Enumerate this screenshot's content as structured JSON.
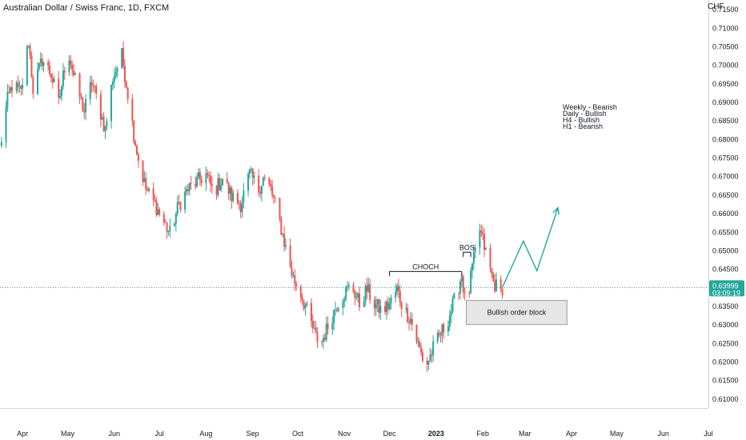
{
  "header": {
    "title": "Australian Dollar / Swiss Franc, 1D, FXCM",
    "currency": "CHF"
  },
  "price_tag": {
    "price": "0.63999",
    "countdown": "03:09:19"
  },
  "bias_notes": [
    "Weekly - Bearish",
    "Daily - Bullish",
    "H4 - Bullish",
    "H1 - Bearish"
  ],
  "annotations": {
    "choch": "CHOCH",
    "bos": "BOS",
    "order_block": "Bullish order block"
  },
  "colors": {
    "up": "#26a69a",
    "down": "#ef5350",
    "projection": "#26a69a",
    "price_line": "#26a69a",
    "order_block_fill": "#e6e6e6"
  },
  "chart_data": {
    "type": "candlestick",
    "title": "Australian Dollar / Swiss Franc, 1D, FXCM",
    "ylabel": "CHF",
    "ylim": [
      0.6075,
      0.7175
    ],
    "y_ticks": [
      "0.71500",
      "0.71000",
      "0.70500",
      "0.70000",
      "0.69500",
      "0.69000",
      "0.68500",
      "0.68000",
      "0.67500",
      "0.67000",
      "0.66500",
      "0.66000",
      "0.65500",
      "0.65000",
      "0.64500",
      "0.64000",
      "0.63500",
      "0.63000",
      "0.62500",
      "0.62000",
      "0.61500",
      "0.61000"
    ],
    "x_ticks": [
      "Apr",
      "May",
      "Jun",
      "Jul",
      "Aug",
      "Sep",
      "Oct",
      "Nov",
      "Dec",
      "2023",
      "Feb",
      "Mar",
      "Apr",
      "May",
      "Jun",
      "Jul"
    ],
    "x_range": [
      "2022-03-17",
      "2023-07-01"
    ],
    "anchors": [
      [
        "2022-03-17",
        0.6775
      ],
      [
        "2022-03-22",
        0.6905
      ],
      [
        "2022-03-25",
        0.6945
      ],
      [
        "2022-03-31",
        0.6925
      ],
      [
        "2022-04-05",
        0.7065
      ],
      [
        "2022-04-08",
        0.6935
      ],
      [
        "2022-04-14",
        0.7015
      ],
      [
        "2022-04-20",
        0.6975
      ],
      [
        "2022-04-25",
        0.6895
      ],
      [
        "2022-05-01",
        0.7045
      ],
      [
        "2022-05-06",
        0.6955
      ],
      [
        "2022-05-12",
        0.6875
      ],
      [
        "2022-05-17",
        0.6955
      ],
      [
        "2022-05-22",
        0.6885
      ],
      [
        "2022-05-26",
        0.6825
      ],
      [
        "2022-05-31",
        0.6965
      ],
      [
        "2022-06-06",
        0.7025
      ],
      [
        "2022-06-10",
        0.6925
      ],
      [
        "2022-06-14",
        0.6815
      ],
      [
        "2022-06-17",
        0.6745
      ],
      [
        "2022-06-22",
        0.6665
      ],
      [
        "2022-06-28",
        0.6625
      ],
      [
        "2022-07-04",
        0.6575
      ],
      [
        "2022-07-08",
        0.6545
      ],
      [
        "2022-07-14",
        0.6625
      ],
      [
        "2022-07-20",
        0.6665
      ],
      [
        "2022-07-26",
        0.6685
      ],
      [
        "2022-08-01",
        0.6705
      ],
      [
        "2022-08-06",
        0.6655
      ],
      [
        "2022-08-12",
        0.6695
      ],
      [
        "2022-08-18",
        0.6645
      ],
      [
        "2022-08-24",
        0.6625
      ],
      [
        "2022-08-30",
        0.6705
      ],
      [
        "2022-09-05",
        0.6665
      ],
      [
        "2022-09-08",
        0.6695
      ],
      [
        "2022-09-13",
        0.6665
      ],
      [
        "2022-09-18",
        0.6595
      ],
      [
        "2022-09-23",
        0.6505
      ],
      [
        "2022-09-28",
        0.6425
      ],
      [
        "2022-10-03",
        0.6385
      ],
      [
        "2022-10-08",
        0.6325
      ],
      [
        "2022-10-13",
        0.6265
      ],
      [
        "2022-10-17",
        0.6255
      ],
      [
        "2022-10-22",
        0.6305
      ],
      [
        "2022-10-27",
        0.6355
      ],
      [
        "2022-11-01",
        0.6385
      ],
      [
        "2022-11-06",
        0.6405
      ],
      [
        "2022-11-11",
        0.6355
      ],
      [
        "2022-11-16",
        0.6395
      ],
      [
        "2022-11-21",
        0.6355
      ],
      [
        "2022-11-26",
        0.6335
      ],
      [
        "2022-12-01",
        0.6355
      ],
      [
        "2022-12-06",
        0.6395
      ],
      [
        "2022-12-10",
        0.6345
      ],
      [
        "2022-12-15",
        0.6315
      ],
      [
        "2022-12-20",
        0.6245
      ],
      [
        "2022-12-25",
        0.6185
      ],
      [
        "2022-12-30",
        0.6235
      ],
      [
        "2023-01-04",
        0.6275
      ],
      [
        "2023-01-09",
        0.6315
      ],
      [
        "2023-01-14",
        0.6375
      ],
      [
        "2023-01-18",
        0.6435
      ],
      [
        "2023-01-21",
        0.6335
      ],
      [
        "2023-01-25",
        0.6455
      ],
      [
        "2023-01-30",
        0.6555
      ],
      [
        "2023-02-03",
        0.6495
      ],
      [
        "2023-02-08",
        0.6415
      ],
      [
        "2023-02-13",
        0.6385
      ],
      [
        "2023-02-14",
        0.64
      ]
    ],
    "projection": [
      [
        "2023-02-14",
        0.64
      ],
      [
        "2023-02-28",
        0.6525
      ],
      [
        "2023-03-09",
        0.6445
      ],
      [
        "2023-03-23",
        0.6615
      ]
    ],
    "choch": {
      "level": 0.6443,
      "from": "2022-12-01",
      "to": "2023-01-18"
    },
    "bos": {
      "level": 0.6495,
      "from": "2023-01-19",
      "to": "2023-01-24"
    },
    "order_block": {
      "from": "2023-01-21",
      "to": "2023-03-29",
      "top": 0.6365,
      "bottom": 0.63
    }
  }
}
